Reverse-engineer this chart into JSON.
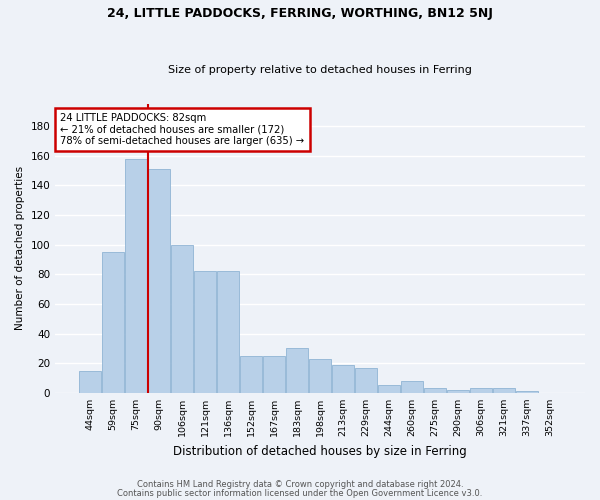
{
  "title1": "24, LITTLE PADDOCKS, FERRING, WORTHING, BN12 5NJ",
  "title2": "Size of property relative to detached houses in Ferring",
  "xlabel": "Distribution of detached houses by size in Ferring",
  "ylabel": "Number of detached properties",
  "categories": [
    "44sqm",
    "59sqm",
    "75sqm",
    "90sqm",
    "106sqm",
    "121sqm",
    "136sqm",
    "152sqm",
    "167sqm",
    "183sqm",
    "198sqm",
    "213sqm",
    "229sqm",
    "244sqm",
    "260sqm",
    "275sqm",
    "290sqm",
    "306sqm",
    "321sqm",
    "337sqm",
    "352sqm"
  ],
  "values": [
    15,
    95,
    158,
    151,
    100,
    82,
    82,
    25,
    25,
    30,
    23,
    19,
    17,
    5,
    8,
    3,
    2,
    3,
    3,
    1,
    0
  ],
  "bar_color": "#b8d0e8",
  "bar_edge_color": "#90b4d4",
  "annotation_text": "24 LITTLE PADDOCKS: 82sqm\n← 21% of detached houses are smaller (172)\n78% of semi-detached houses are larger (635) →",
  "annotation_box_color": "#ffffff",
  "annotation_box_edge_color": "#cc0000",
  "vline_color": "#cc0000",
  "footer1": "Contains HM Land Registry data © Crown copyright and database right 2024.",
  "footer2": "Contains public sector information licensed under the Open Government Licence v3.0.",
  "background_color": "#eef2f8",
  "grid_color": "#ffffff",
  "ylim": [
    0,
    195
  ],
  "yticks": [
    0,
    20,
    40,
    60,
    80,
    100,
    120,
    140,
    160,
    180
  ]
}
